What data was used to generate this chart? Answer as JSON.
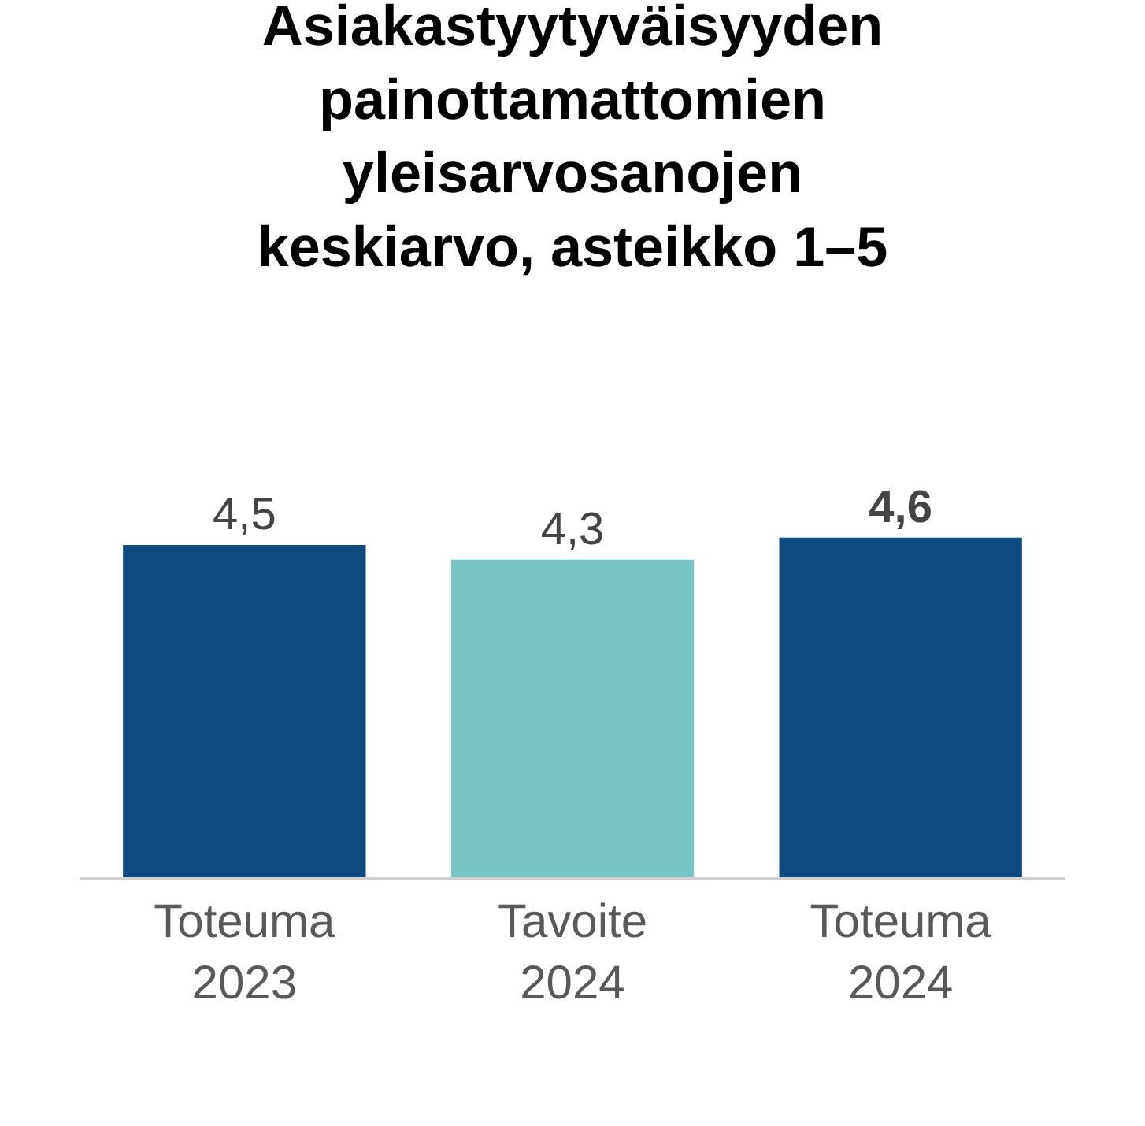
{
  "chart_data": {
    "type": "bar",
    "title": "Asiakastyytyväisyyden\npainottamattomien\nyleisarvosanojen\nkeskiarvo, asteikko 1–5",
    "categories": [
      "Toteuma\n2023",
      "Tavoite\n2024",
      "Toteuma\n2024"
    ],
    "values": [
      4.5,
      4.3,
      4.6
    ],
    "colors": [
      "#0f4a7e",
      "#76c4c4",
      "#0f4a7e"
    ],
    "value_labels": [
      "4,5",
      "4,3",
      "4,6"
    ],
    "legend": false
  }
}
